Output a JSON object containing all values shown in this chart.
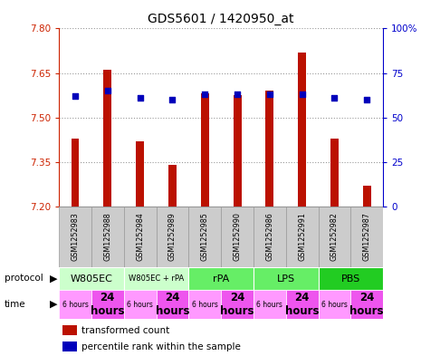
{
  "title": "GDS5601 / 1420950_at",
  "samples": [
    "GSM1252983",
    "GSM1252988",
    "GSM1252984",
    "GSM1252989",
    "GSM1252985",
    "GSM1252990",
    "GSM1252986",
    "GSM1252991",
    "GSM1252982",
    "GSM1252987"
  ],
  "transformed_count": [
    7.43,
    7.66,
    7.42,
    7.34,
    7.58,
    7.575,
    7.59,
    7.72,
    7.43,
    7.27
  ],
  "percentile_rank": [
    62,
    65,
    61,
    60,
    63,
    63,
    63,
    63,
    61,
    60
  ],
  "ylim_left": [
    7.2,
    7.8
  ],
  "ylim_right": [
    0,
    100
  ],
  "yticks_left": [
    7.2,
    7.35,
    7.5,
    7.65,
    7.8
  ],
  "yticks_right": [
    0,
    25,
    50,
    75,
    100
  ],
  "protocols": [
    {
      "label": "W805EC",
      "start": 0,
      "end": 2,
      "color": "#ccffcc"
    },
    {
      "label": "W805EC + rPA",
      "start": 2,
      "end": 4,
      "color": "#ccffcc"
    },
    {
      "label": "rPA",
      "start": 4,
      "end": 6,
      "color": "#66ee66"
    },
    {
      "label": "LPS",
      "start": 6,
      "end": 8,
      "color": "#66ee66"
    },
    {
      "label": "PBS",
      "start": 8,
      "end": 10,
      "color": "#22cc22"
    }
  ],
  "times": [
    "6 hours",
    "24\nhours",
    "6 hours",
    "24\nhours",
    "6 hours",
    "24\nhours",
    "6 hours",
    "24\nhours",
    "6 hours",
    "24\nhours"
  ],
  "time_colors_light": "#ff99ff",
  "time_colors_dark": "#ee55ee",
  "bar_color": "#bb1100",
  "dot_color": "#0000bb",
  "left_axis_color": "#cc2200",
  "right_axis_color": "#0000cc",
  "grid_color": "#999999",
  "sample_bg_color": "#cccccc",
  "sample_border_color": "#999999"
}
